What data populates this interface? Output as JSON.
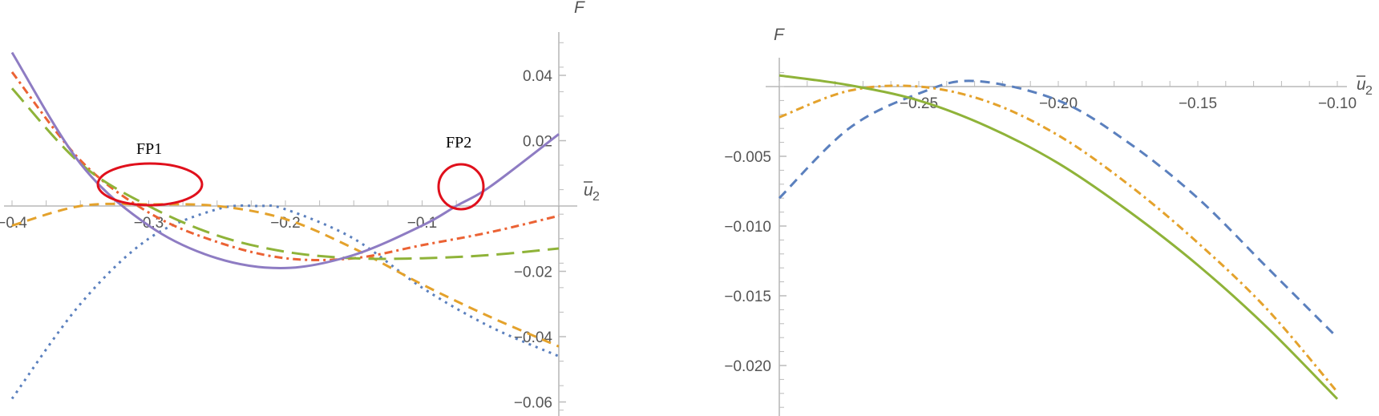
{
  "chart_data": [
    {
      "type": "line",
      "title": "",
      "xlabel": "ū2",
      "ylabel": "F",
      "xlim": [
        -0.4,
        0.0
      ],
      "ylim": [
        -0.065,
        0.05
      ],
      "x_ticks": [
        "-0.4",
        "-0.3",
        "-0.2",
        "-0.1"
      ],
      "y_ticks": [
        "0.04",
        "0.02",
        "-0.02",
        "-0.04",
        "-0.06"
      ],
      "grid": false,
      "legend": null,
      "annotations": [
        {
          "text": "FP1",
          "x": -0.3,
          "y": 0.0,
          "shape": "ellipse",
          "color": "#e0101c"
        },
        {
          "text": "FP2",
          "x": -0.075,
          "y": 0.0,
          "shape": "circle",
          "color": "#e0101c"
        }
      ],
      "series": [
        {
          "name": "blue dotted",
          "color": "#5b80be",
          "style": "dotted",
          "x": [
            -0.4,
            -0.35,
            -0.3,
            -0.25,
            -0.22,
            -0.2,
            -0.15,
            -0.1,
            -0.05,
            0.0
          ],
          "y": [
            -0.059,
            -0.03,
            -0.01,
            -0.001,
            0.0,
            -0.001,
            -0.01,
            -0.025,
            -0.037,
            -0.046
          ]
        },
        {
          "name": "orange dashed",
          "color": "#e4a22c",
          "style": "dashed",
          "x": [
            -0.4,
            -0.35,
            -0.3,
            -0.25,
            -0.2,
            -0.15,
            -0.1,
            -0.05,
            0.0
          ],
          "y": [
            -0.006,
            0.0,
            0.0005,
            0.0,
            -0.004,
            -0.013,
            -0.024,
            -0.034,
            -0.043
          ]
        },
        {
          "name": "red dot-dash",
          "color": "#eb6234",
          "style": "dashdot",
          "x": [
            -0.4,
            -0.35,
            -0.3,
            -0.25,
            -0.2,
            -0.15,
            -0.1,
            -0.05,
            0.0
          ],
          "y": [
            0.041,
            0.014,
            -0.002,
            -0.011,
            -0.016,
            -0.016,
            -0.012,
            -0.008,
            -0.003
          ]
        },
        {
          "name": "green long-dash",
          "color": "#8fb339",
          "style": "longdash",
          "x": [
            -0.4,
            -0.35,
            -0.3,
            -0.25,
            -0.2,
            -0.15,
            -0.1,
            -0.05,
            0.0
          ],
          "y": [
            0.036,
            0.013,
            0.0,
            -0.009,
            -0.014,
            -0.016,
            -0.016,
            -0.015,
            -0.013
          ]
        },
        {
          "name": "purple solid",
          "color": "#8e7cc3",
          "style": "solid",
          "x": [
            -0.4,
            -0.35,
            -0.3,
            -0.25,
            -0.2,
            -0.15,
            -0.1,
            -0.075,
            -0.05,
            0.0
          ],
          "y": [
            0.047,
            0.013,
            -0.006,
            -0.016,
            -0.019,
            -0.015,
            -0.006,
            0.0,
            0.006,
            0.022
          ]
        }
      ]
    },
    {
      "type": "line",
      "title": "",
      "xlabel": "ū2",
      "ylabel": "F",
      "xlim": [
        -0.3,
        -0.1
      ],
      "ylim": [
        -0.0235,
        0.0015
      ],
      "x_ticks": [
        "-0.25",
        "-0.20",
        "-0.15",
        "-0.10"
      ],
      "y_ticks": [
        "-0.005",
        "-0.010",
        "-0.015",
        "-0.020"
      ],
      "grid": false,
      "legend": null,
      "series": [
        {
          "name": "blue dashed",
          "color": "#5b80be",
          "style": "dashed",
          "x": [
            -0.3,
            -0.275,
            -0.25,
            -0.23,
            -0.2,
            -0.175,
            -0.15,
            -0.125,
            -0.1
          ],
          "y": [
            -0.008,
            -0.003,
            -0.0005,
            0.0004,
            -0.001,
            -0.004,
            -0.008,
            -0.013,
            -0.018
          ]
        },
        {
          "name": "orange dot-dash",
          "color": "#e4a22c",
          "style": "dashdot",
          "x": [
            -0.3,
            -0.275,
            -0.25,
            -0.225,
            -0.2,
            -0.175,
            -0.15,
            -0.125,
            -0.1
          ],
          "y": [
            -0.0022,
            -0.0003,
            0.0,
            -0.0011,
            -0.0035,
            -0.007,
            -0.0112,
            -0.016,
            -0.0219
          ]
        },
        {
          "name": "green solid",
          "color": "#8fb339",
          "style": "solid",
          "x": [
            -0.3,
            -0.275,
            -0.25,
            -0.225,
            -0.2,
            -0.175,
            -0.15,
            -0.125,
            -0.1
          ],
          "y": [
            0.0008,
            0.0001,
            -0.001,
            -0.0029,
            -0.0055,
            -0.0089,
            -0.0128,
            -0.0173,
            -0.0224
          ]
        }
      ]
    }
  ],
  "labels": {
    "left": {
      "y_axis": "F",
      "x_axis_base": "u",
      "x_axis_sub": "2",
      "fp1": "FP1",
      "fp2": "FP2"
    },
    "right": {
      "y_axis": "F",
      "x_axis_base": "u",
      "x_axis_sub": "2"
    }
  }
}
